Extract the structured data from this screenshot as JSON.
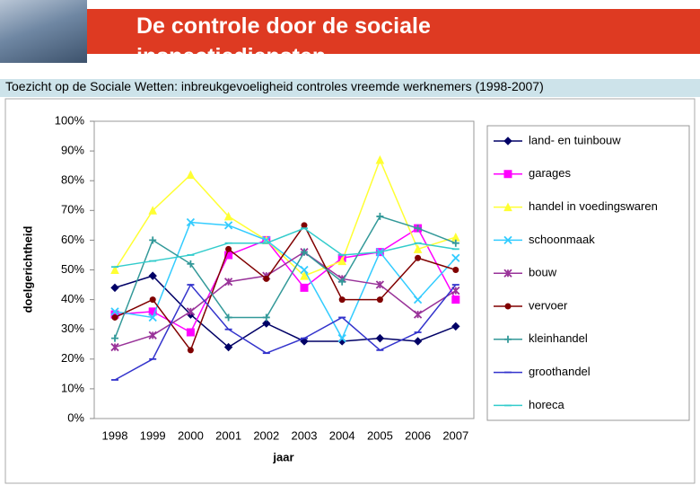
{
  "header": {
    "title": "De controle door de sociale inspectiediensten"
  },
  "chart_data": {
    "type": "line",
    "title": "Toezicht op de Sociale Wetten: inbreukgevoeligheid controles vreemde werknemers (1998-2007)",
    "x_label": "jaar",
    "y_label": "doelgerichtheid",
    "categories": [
      "1998",
      "1999",
      "2000",
      "2001",
      "2002",
      "2003",
      "2004",
      "2005",
      "2006",
      "2007"
    ],
    "ylim": [
      0,
      100
    ],
    "yticks": [
      {
        "value": 0,
        "label": "0%"
      },
      {
        "value": 10,
        "label": "10%"
      },
      {
        "value": 20,
        "label": "20%"
      },
      {
        "value": 30,
        "label": "30%"
      },
      {
        "value": 40,
        "label": "40%"
      },
      {
        "value": 50,
        "label": "50%"
      },
      {
        "value": 60,
        "label": "60%"
      },
      {
        "value": 70,
        "label": "70%"
      },
      {
        "value": 80,
        "label": "80%"
      },
      {
        "value": 90,
        "label": "90%"
      },
      {
        "value": 100,
        "label": "100%"
      }
    ],
    "grid": false,
    "legend": "right",
    "series": [
      {
        "name": "land- en tuinbouw",
        "color": "#000066",
        "marker": "diamond",
        "values": [
          44,
          48,
          35,
          24,
          32,
          26,
          26,
          27,
          26,
          31
        ]
      },
      {
        "name": "garages",
        "color": "#ff00ff",
        "marker": "square",
        "values": [
          35,
          36,
          29,
          55,
          60,
          44,
          54,
          56,
          64,
          40
        ]
      },
      {
        "name": "handel in voedingswaren",
        "color": "#ffff33",
        "marker": "triangle",
        "values": [
          50,
          70,
          82,
          68,
          60,
          48,
          53,
          87,
          57,
          61
        ]
      },
      {
        "name": "schoonmaak",
        "color": "#33ccff",
        "marker": "x",
        "values": [
          36,
          34,
          66,
          65,
          60,
          50,
          27,
          56,
          40,
          54
        ]
      },
      {
        "name": "bouw",
        "color": "#993399",
        "marker": "star",
        "values": [
          24,
          28,
          36,
          46,
          48,
          56,
          47,
          45,
          35,
          43
        ]
      },
      {
        "name": "vervoer",
        "color": "#800000",
        "marker": "circle",
        "values": [
          34,
          40,
          23,
          57,
          47,
          65,
          40,
          40,
          54,
          50
        ]
      },
      {
        "name": "kleinhandel",
        "color": "#339999",
        "marker": "plus",
        "values": [
          27,
          60,
          52,
          34,
          34,
          56,
          46,
          68,
          64,
          59
        ]
      },
      {
        "name": "groothandel",
        "color": "#3333cc",
        "marker": "dash",
        "values": [
          13,
          20,
          45,
          30,
          22,
          27,
          34,
          23,
          29,
          45
        ]
      },
      {
        "name": "horeca",
        "color": "#33cccc",
        "marker": "dash",
        "values": [
          51,
          53,
          55,
          59,
          59,
          64,
          55,
          56,
          59,
          57
        ]
      }
    ]
  }
}
